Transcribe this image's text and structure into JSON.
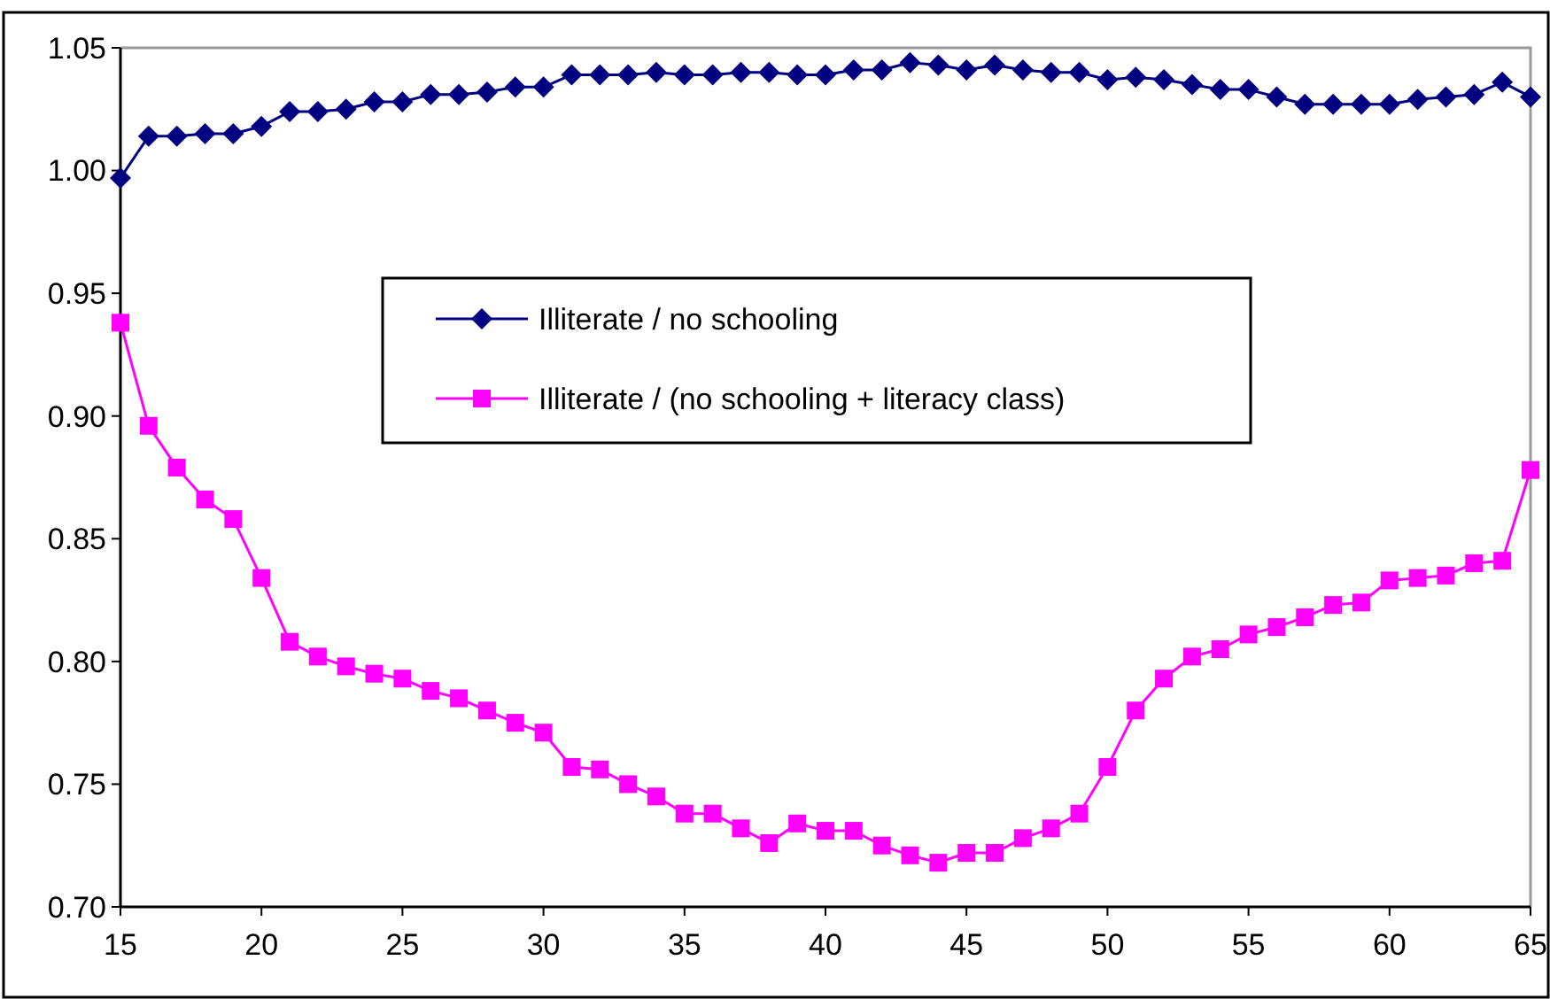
{
  "chart_data": {
    "type": "line",
    "x": [
      15,
      16,
      17,
      18,
      19,
      20,
      21,
      22,
      23,
      24,
      25,
      26,
      27,
      28,
      29,
      30,
      31,
      32,
      33,
      34,
      35,
      36,
      37,
      38,
      39,
      40,
      41,
      42,
      43,
      44,
      45,
      46,
      47,
      48,
      49,
      50,
      51,
      52,
      53,
      54,
      55,
      56,
      57,
      58,
      59,
      60,
      61,
      62,
      63,
      64,
      65
    ],
    "series": [
      {
        "name": "Illiterate / no schooling",
        "color": "#000080",
        "marker": "diamond",
        "values": [
          0.997,
          1.014,
          1.014,
          1.015,
          1.015,
          1.018,
          1.024,
          1.024,
          1.025,
          1.028,
          1.028,
          1.031,
          1.031,
          1.032,
          1.034,
          1.034,
          1.039,
          1.039,
          1.039,
          1.04,
          1.039,
          1.039,
          1.04,
          1.04,
          1.039,
          1.039,
          1.041,
          1.041,
          1.044,
          1.043,
          1.041,
          1.043,
          1.041,
          1.04,
          1.04,
          1.037,
          1.038,
          1.037,
          1.035,
          1.033,
          1.033,
          1.03,
          1.027,
          1.027,
          1.027,
          1.027,
          1.029,
          1.03,
          1.031,
          1.036,
          1.03
        ]
      },
      {
        "name": "Illiterate / (no schooling + literacy class)",
        "color": "#ff00ff",
        "marker": "square",
        "values": [
          0.938,
          0.896,
          0.879,
          0.866,
          0.858,
          0.834,
          0.808,
          0.802,
          0.798,
          0.795,
          0.793,
          0.788,
          0.785,
          0.78,
          0.775,
          0.771,
          0.757,
          0.756,
          0.75,
          0.745,
          0.738,
          0.738,
          0.732,
          0.726,
          0.734,
          0.731,
          0.731,
          0.725,
          0.721,
          0.718,
          0.722,
          0.722,
          0.728,
          0.732,
          0.738,
          0.757,
          0.78,
          0.793,
          0.802,
          0.805,
          0.811,
          0.814,
          0.818,
          0.823,
          0.824,
          0.833,
          0.834,
          0.835,
          0.84,
          0.841,
          0.878
        ]
      }
    ],
    "xlim": [
      15,
      65
    ],
    "xticks": [
      15,
      20,
      25,
      30,
      35,
      40,
      45,
      50,
      55,
      60,
      65
    ],
    "ylim": [
      0.7,
      1.05
    ],
    "yticks": [
      {
        "value": 0.7,
        "label": "0.70"
      },
      {
        "value": 0.75,
        "label": "0.75"
      },
      {
        "value": 0.8,
        "label": "0.80"
      },
      {
        "value": 0.85,
        "label": "0.85"
      },
      {
        "value": 0.9,
        "label": "0.90"
      },
      {
        "value": 0.95,
        "label": "0.95"
      },
      {
        "value": 1.0,
        "label": "1.00"
      },
      {
        "value": 1.05,
        "label": "1.05"
      }
    ],
    "grid": false,
    "legend": "center",
    "line_style": "solid"
  }
}
